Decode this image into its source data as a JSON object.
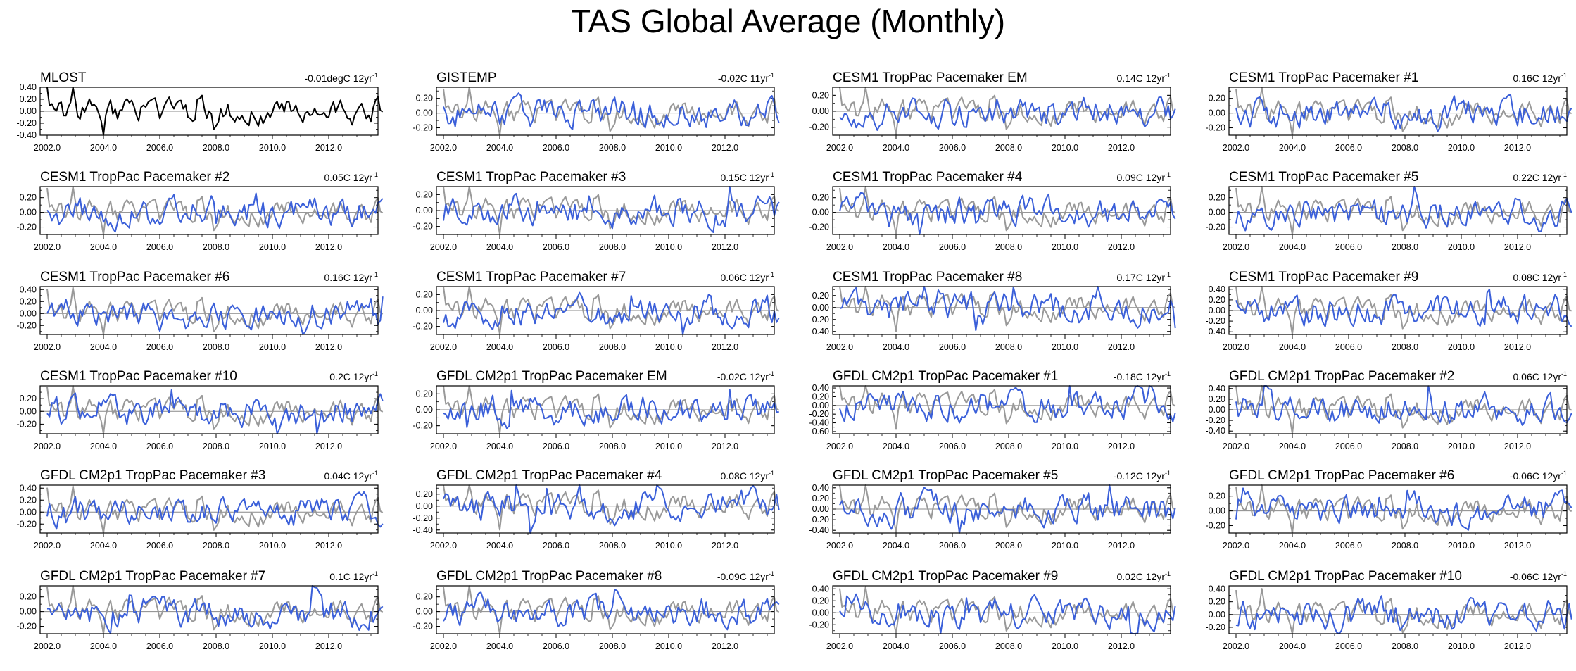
{
  "title": "TAS Global Average (Monthly)",
  "colors": {
    "observed": "#000000",
    "reference": "#999999",
    "model": "#3a5fd9",
    "zero_line": "#888888"
  },
  "chart_data": {
    "type": "line",
    "x_ticks": [
      "2002.0",
      "2004.0",
      "2006.0",
      "2008.0",
      "2010.0",
      "2012.0"
    ],
    "x_range": [
      2001.75,
      2013.75
    ],
    "panels": [
      {
        "title": "MLOST",
        "trend": "-0.01degC 12yr",
        "trend_sup": "-1",
        "style": "obs",
        "seed": 1,
        "ylim": [
          -0.4,
          0.4
        ],
        "yticks": [
          "0.40",
          "0.20",
          "0.00",
          "-0.20",
          "-0.40"
        ]
      },
      {
        "title": "GISTEMP",
        "trend": "-0.02C 11yr",
        "trend_sup": "-1",
        "style": "model",
        "seed": 2,
        "ylim": [
          -0.3,
          0.35
        ],
        "yticks": [
          "0.20",
          "0.00",
          "-0.20"
        ]
      },
      {
        "title": "CESM1 TropPac Pacemaker EM",
        "trend": "0.14C 12yr",
        "trend_sup": "-1",
        "style": "model",
        "seed": 3,
        "ylim": [
          -0.3,
          0.3
        ],
        "yticks": [
          "0.20",
          "0.00",
          "-0.20"
        ]
      },
      {
        "title": "CESM1 TropPac Pacemaker #1",
        "trend": "0.16C 12yr",
        "trend_sup": "-1",
        "style": "model",
        "seed": 4,
        "ylim": [
          -0.3,
          0.35
        ],
        "yticks": [
          "0.20",
          "0.00",
          "-0.20"
        ]
      },
      {
        "title": "CESM1 TropPac Pacemaker #2",
        "trend": "0.05C 12yr",
        "trend_sup": "-1",
        "style": "model",
        "seed": 5,
        "ylim": [
          -0.3,
          0.35
        ],
        "yticks": [
          "0.20",
          "0.00",
          "-0.20"
        ]
      },
      {
        "title": "CESM1 TropPac Pacemaker #3",
        "trend": "0.15C 12yr",
        "trend_sup": "-1",
        "style": "model",
        "seed": 6,
        "ylim": [
          -0.3,
          0.3
        ],
        "yticks": [
          "0.20",
          "0.00",
          "-0.20"
        ]
      },
      {
        "title": "CESM1 TropPac Pacemaker #4",
        "trend": "0.09C 12yr",
        "trend_sup": "-1",
        "style": "model",
        "seed": 7,
        "ylim": [
          -0.3,
          0.35
        ],
        "yticks": [
          "0.20",
          "0.00",
          "-0.20"
        ]
      },
      {
        "title": "CESM1 TropPac Pacemaker #5",
        "trend": "0.22C 12yr",
        "trend_sup": "-1",
        "style": "model",
        "seed": 8,
        "ylim": [
          -0.3,
          0.35
        ],
        "yticks": [
          "0.20",
          "0.00",
          "-0.20"
        ]
      },
      {
        "title": "CESM1 TropPac Pacemaker #6",
        "trend": "0.16C 12yr",
        "trend_sup": "-1",
        "style": "model",
        "seed": 9,
        "ylim": [
          -0.35,
          0.45
        ],
        "yticks": [
          "0.40",
          "0.20",
          "0.00",
          "-0.20"
        ]
      },
      {
        "title": "CESM1 TropPac Pacemaker #7",
        "trend": "0.06C 12yr",
        "trend_sup": "-1",
        "style": "model",
        "seed": 10,
        "ylim": [
          -0.3,
          0.3
        ],
        "yticks": [
          "0.20",
          "0.00",
          "-0.20"
        ]
      },
      {
        "title": "CESM1 TropPac Pacemaker #8",
        "trend": "0.17C 12yr",
        "trend_sup": "-1",
        "style": "model",
        "seed": 11,
        "ylim": [
          -0.45,
          0.35
        ],
        "yticks": [
          "0.20",
          "0.00",
          "-0.20",
          "-0.40"
        ]
      },
      {
        "title": "CESM1 TropPac Pacemaker #9",
        "trend": "0.08C 12yr",
        "trend_sup": "-1",
        "style": "model",
        "seed": 12,
        "ylim": [
          -0.45,
          0.45
        ],
        "yticks": [
          "0.40",
          "0.20",
          "0.00",
          "-0.20",
          "-0.40"
        ]
      },
      {
        "title": "CESM1 TropPac Pacemaker #10",
        "trend": "0.2C 12yr",
        "trend_sup": "-1",
        "style": "model",
        "seed": 13,
        "ylim": [
          -0.35,
          0.4
        ],
        "yticks": [
          "0.20",
          "0.00",
          "-0.20"
        ]
      },
      {
        "title": "GFDL CM2p1 TropPac Pacemaker EM",
        "trend": "-0.02C 12yr",
        "trend_sup": "-1",
        "style": "model",
        "seed": 14,
        "ylim": [
          -0.3,
          0.3
        ],
        "yticks": [
          "0.20",
          "0.00",
          "-0.20"
        ]
      },
      {
        "title": "GFDL CM2p1 TropPac Pacemaker #1",
        "trend": "-0.18C 12yr",
        "trend_sup": "-1",
        "style": "model",
        "seed": 15,
        "ylim": [
          -0.65,
          0.45
        ],
        "yticks": [
          "0.40",
          "0.20",
          "0.00",
          "-0.20",
          "-0.40",
          "-0.60"
        ]
      },
      {
        "title": "GFDL CM2p1 TropPac Pacemaker #2",
        "trend": "0.06C 12yr",
        "trend_sup": "-1",
        "style": "model",
        "seed": 16,
        "ylim": [
          -0.45,
          0.45
        ],
        "yticks": [
          "0.40",
          "0.20",
          "0.00",
          "-0.20",
          "-0.40"
        ]
      },
      {
        "title": "GFDL CM2p1 TropPac Pacemaker #3",
        "trend": "0.04C 12yr",
        "trend_sup": "-1",
        "style": "model",
        "seed": 17,
        "ylim": [
          -0.35,
          0.45
        ],
        "yticks": [
          "0.40",
          "0.20",
          "0.00",
          "-0.20"
        ]
      },
      {
        "title": "GFDL CM2p1 TropPac Pacemaker #4",
        "trend": "0.08C 12yr",
        "trend_sup": "-1",
        "style": "model",
        "seed": 18,
        "ylim": [
          -0.45,
          0.35
        ],
        "yticks": [
          "0.20",
          "0.00",
          "-0.20",
          "-0.40"
        ]
      },
      {
        "title": "GFDL CM2p1 TropPac Pacemaker #5",
        "trend": "-0.12C 12yr",
        "trend_sup": "-1",
        "style": "model",
        "seed": 19,
        "ylim": [
          -0.45,
          0.45
        ],
        "yticks": [
          "0.40",
          "0.20",
          "0.00",
          "-0.20",
          "-0.40"
        ]
      },
      {
        "title": "GFDL CM2p1 TropPac Pacemaker #6",
        "trend": "-0.06C 12yr",
        "trend_sup": "-1",
        "style": "model",
        "seed": 20,
        "ylim": [
          -0.3,
          0.35
        ],
        "yticks": [
          "0.20",
          "0.00",
          "-0.20"
        ]
      },
      {
        "title": "GFDL CM2p1 TropPac Pacemaker #7",
        "trend": "0.1C 12yr",
        "trend_sup": "-1",
        "style": "model",
        "seed": 21,
        "ylim": [
          -0.3,
          0.35
        ],
        "yticks": [
          "0.20",
          "0.00",
          "-0.20"
        ]
      },
      {
        "title": "GFDL CM2p1 TropPac Pacemaker #8",
        "trend": "-0.09C 12yr",
        "trend_sup": "-1",
        "style": "model",
        "seed": 22,
        "ylim": [
          -0.3,
          0.35
        ],
        "yticks": [
          "0.20",
          "0.00",
          "-0.20"
        ]
      },
      {
        "title": "GFDL CM2p1 TropPac Pacemaker #9",
        "trend": "0.02C 12yr",
        "trend_sup": "-1",
        "style": "model",
        "seed": 23,
        "ylim": [
          -0.35,
          0.45
        ],
        "yticks": [
          "0.40",
          "0.20",
          "0.00",
          "-0.20"
        ]
      },
      {
        "title": "GFDL CM2p1 TropPac Pacemaker #10",
        "trend": "-0.06C 12yr",
        "trend_sup": "-1",
        "style": "model",
        "seed": 24,
        "ylim": [
          -0.3,
          0.45
        ],
        "yticks": [
          "0.40",
          "0.20",
          "0.00",
          "-0.20"
        ]
      }
    ]
  }
}
